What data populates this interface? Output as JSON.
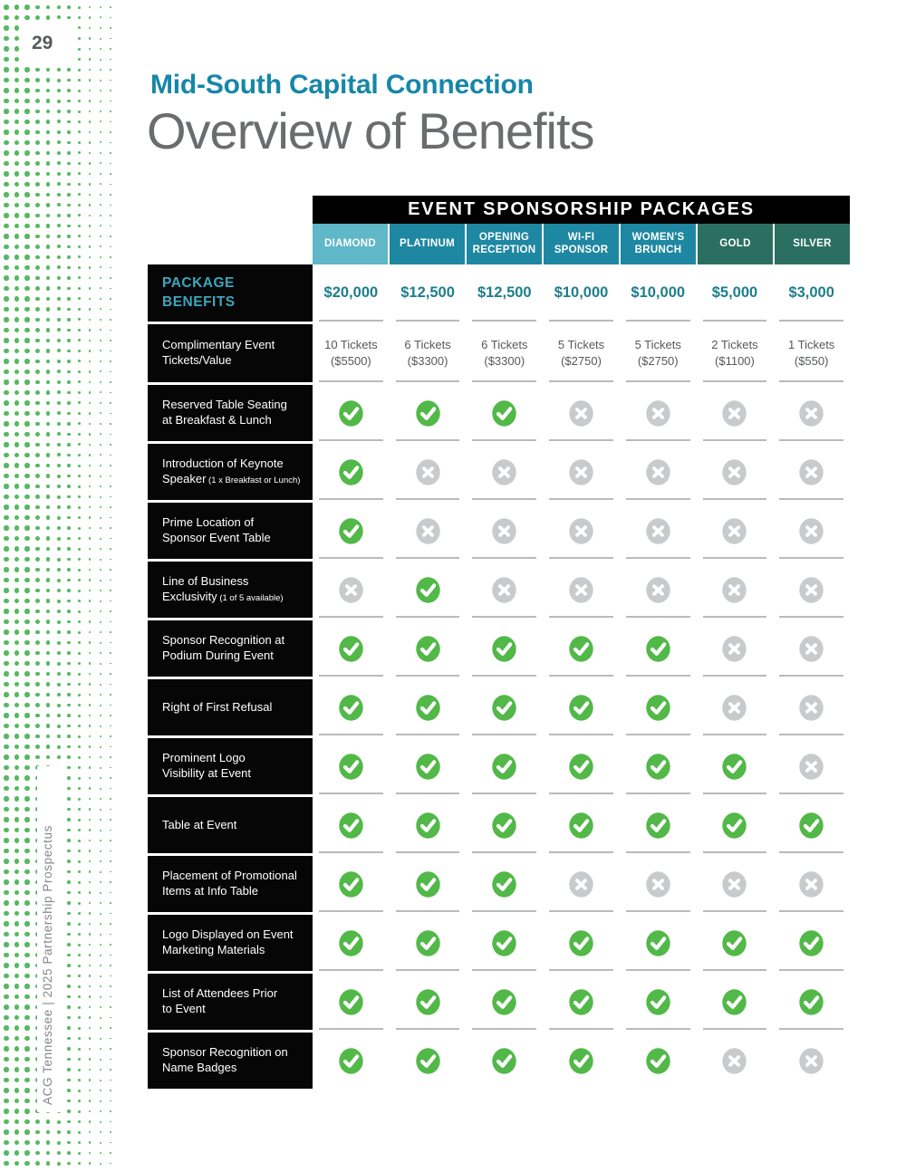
{
  "page": {
    "number": "29",
    "side_text": "ACG Tennessee  |  2025 Partnership Prospectus"
  },
  "header": {
    "kicker": "Mid-South Capital Connection",
    "title": "Overview of Benefits",
    "kicker_color": "#1687A8"
  },
  "table": {
    "title": "EVENT SPONSORSHIP PACKAGES",
    "corner_lines": [
      "PACKAGE",
      "BENEFITS"
    ],
    "columns": [
      {
        "name": "DIAMOND",
        "price": "$20,000",
        "bg": "#5FB7C8"
      },
      {
        "name": "PLATINUM",
        "price": "$12,500",
        "bg": "#1E87A2"
      },
      {
        "name": "OPENING RECEPTION",
        "price": "$12,500",
        "bg": "#1E87A2"
      },
      {
        "name": "WI-FI SPONSOR",
        "price": "$10,000",
        "bg": "#1E87A2"
      },
      {
        "name": "WOMEN'S BRUNCH",
        "price": "$10,000",
        "bg": "#1E87A2"
      },
      {
        "name": "GOLD",
        "price": "$5,000",
        "bg": "#2B6F63"
      },
      {
        "name": "SILVER",
        "price": "$3,000",
        "bg": "#2B6F63"
      }
    ],
    "tickets_row": {
      "lines": [
        "Complimentary Event",
        "Tickets/Value"
      ],
      "cells": [
        {
          "qty": "10 Tickets",
          "value": "($5500)"
        },
        {
          "qty": "6 Tickets",
          "value": "($3300)"
        },
        {
          "qty": "6 Tickets",
          "value": "($3300)"
        },
        {
          "qty": "5 Tickets",
          "value": "($2750)"
        },
        {
          "qty": "5 Tickets",
          "value": "($2750)"
        },
        {
          "qty": "2 Tickets",
          "value": "($1100)"
        },
        {
          "qty": "1 Tickets",
          "value": "($550)"
        }
      ]
    },
    "benefit_rows": [
      {
        "lines": [
          "Reserved Table Seating",
          "at Breakfast & Lunch"
        ],
        "note": "",
        "values": [
          1,
          1,
          1,
          0,
          0,
          0,
          0
        ]
      },
      {
        "lines": [
          "Introduction of Keynote",
          "Speaker"
        ],
        "note": "(1 x Breakfast or Lunch)",
        "values": [
          1,
          0,
          0,
          0,
          0,
          0,
          0
        ]
      },
      {
        "lines": [
          "Prime Location of",
          "Sponsor Event Table"
        ],
        "note": "",
        "values": [
          1,
          0,
          0,
          0,
          0,
          0,
          0
        ]
      },
      {
        "lines": [
          "Line of Business",
          "Exclusivity"
        ],
        "note": "(1 of 5 available)",
        "values": [
          0,
          1,
          0,
          0,
          0,
          0,
          0
        ]
      },
      {
        "lines": [
          "Sponsor Recognition at",
          "Podium During Event"
        ],
        "note": "",
        "values": [
          1,
          1,
          1,
          1,
          1,
          0,
          0
        ]
      },
      {
        "lines": [
          "Right of First Refusal"
        ],
        "note": "",
        "values": [
          1,
          1,
          1,
          1,
          1,
          0,
          0
        ]
      },
      {
        "lines": [
          "Prominent Logo",
          "Visibility at Event"
        ],
        "note": "",
        "values": [
          1,
          1,
          1,
          1,
          1,
          1,
          0
        ]
      },
      {
        "lines": [
          "Table at Event"
        ],
        "note": "",
        "values": [
          1,
          1,
          1,
          1,
          1,
          1,
          1
        ]
      },
      {
        "lines": [
          "Placement of Promotional",
          "Items at Info Table"
        ],
        "note": "",
        "values": [
          1,
          1,
          1,
          0,
          0,
          0,
          0
        ]
      },
      {
        "lines": [
          "Logo Displayed on Event",
          "Marketing Materials"
        ],
        "note": "",
        "values": [
          1,
          1,
          1,
          1,
          1,
          1,
          1
        ]
      },
      {
        "lines": [
          "List of Attendees Prior",
          "to Event"
        ],
        "note": "",
        "values": [
          1,
          1,
          1,
          1,
          1,
          1,
          1
        ]
      },
      {
        "lines": [
          "Sponsor Recognition on",
          "Name Badges"
        ],
        "note": "",
        "values": [
          1,
          1,
          1,
          1,
          1,
          0,
          0
        ]
      }
    ],
    "icons": {
      "yes": "check-icon",
      "no": "x-icon"
    },
    "colors": {
      "check": "#52B848",
      "x": "#C9CACB",
      "underline": "#B9BABB",
      "price": "#1D7E8C",
      "corner_label": "#3BA6BC",
      "dots": "#56B961"
    }
  }
}
